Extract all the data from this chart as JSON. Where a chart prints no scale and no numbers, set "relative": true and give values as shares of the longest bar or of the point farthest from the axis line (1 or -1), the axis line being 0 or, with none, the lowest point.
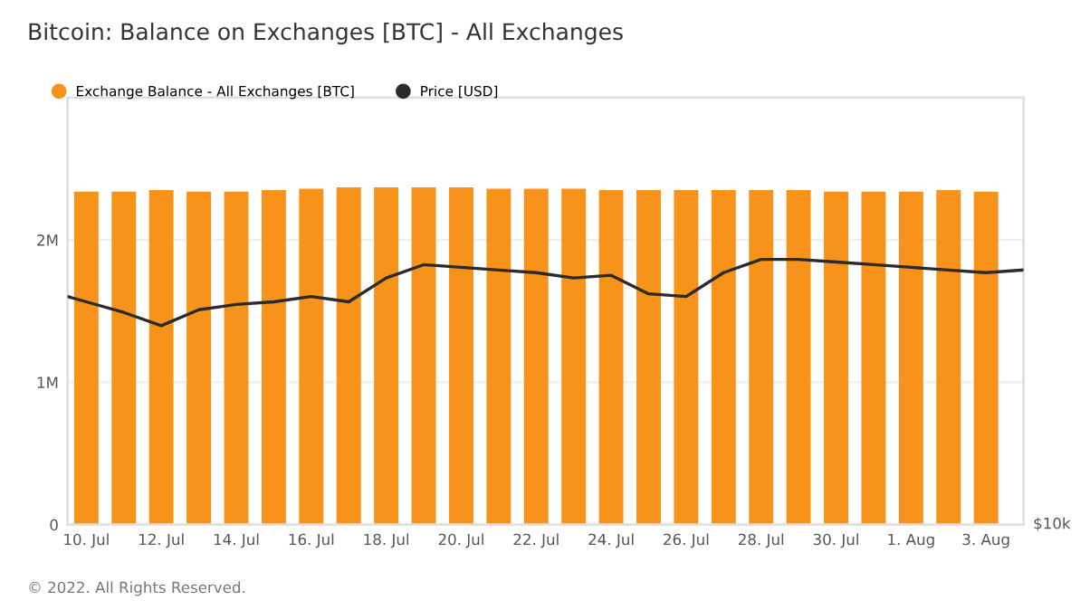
{
  "chart_data": [
    {
      "type": "bar",
      "title": "Bitcoin: Balance on Exchanges [BTC] - All Exchanges",
      "x": [
        "2022-07-10",
        "2022-07-11",
        "2022-07-12",
        "2022-07-13",
        "2022-07-14",
        "2022-07-15",
        "2022-07-16",
        "2022-07-17",
        "2022-07-18",
        "2022-07-19",
        "2022-07-20",
        "2022-07-21",
        "2022-07-22",
        "2022-07-23",
        "2022-07-24",
        "2022-07-25",
        "2022-07-26",
        "2022-07-27",
        "2022-07-28",
        "2022-07-29",
        "2022-07-30",
        "2022-07-31",
        "2022-08-01",
        "2022-08-02",
        "2022-08-03"
      ],
      "series": [
        {
          "name": "Exchange Balance - All Exchanges [BTC]",
          "color": "#f7931a",
          "values": [
            2340000,
            2340000,
            2350000,
            2340000,
            2340000,
            2350000,
            2360000,
            2370000,
            2370000,
            2370000,
            2370000,
            2360000,
            2360000,
            2360000,
            2350000,
            2350000,
            2350000,
            2350000,
            2350000,
            2350000,
            2340000,
            2340000,
            2340000,
            2350000,
            2340000
          ]
        }
      ],
      "xlim": [
        "2022-07-09T12:00",
        "2022-08-04"
      ],
      "xticks": [
        {
          "value": "2022-07-10",
          "label": "10. Jul"
        },
        {
          "value": "2022-07-12",
          "label": "12. Jul"
        },
        {
          "value": "2022-07-14",
          "label": "14. Jul"
        },
        {
          "value": "2022-07-16",
          "label": "16. Jul"
        },
        {
          "value": "2022-07-18",
          "label": "18. Jul"
        },
        {
          "value": "2022-07-20",
          "label": "20. Jul"
        },
        {
          "value": "2022-07-22",
          "label": "22. Jul"
        },
        {
          "value": "2022-07-24",
          "label": "24. Jul"
        },
        {
          "value": "2022-07-26",
          "label": "26. Jul"
        },
        {
          "value": "2022-07-28",
          "label": "28. Jul"
        },
        {
          "value": "2022-07-30",
          "label": "30. Jul"
        },
        {
          "value": "2022-08-01",
          "label": "1. Aug"
        },
        {
          "value": "2022-08-03",
          "label": "3. Aug"
        }
      ],
      "ylim": [
        0,
        3000000
      ],
      "yticks": [
        0,
        {
          "value": 1000000,
          "label": "1M"
        },
        {
          "value": 2000000,
          "label": "2M"
        }
      ],
      "grid": "y",
      "legend": "top left",
      "annotations": [
        "© 2022. All Rights Reserved."
      ]
    },
    {
      "type": "line",
      "relative": true,
      "x": [
        "2022-07-09T12:00",
        "2022-07-10",
        "2022-07-11",
        "2022-07-12",
        "2022-07-13",
        "2022-07-14",
        "2022-07-15",
        "2022-07-16",
        "2022-07-17",
        "2022-07-18",
        "2022-07-19",
        "2022-07-20",
        "2022-07-21",
        "2022-07-22",
        "2022-07-23",
        "2022-07-24",
        "2022-07-25",
        "2022-07-26",
        "2022-07-27",
        "2022-07-28",
        "2022-07-29",
        "2022-07-30",
        "2022-07-31",
        "2022-08-01",
        "2022-08-02",
        "2022-08-03",
        "2022-08-04"
      ],
      "series": [
        {
          "name": "Price [USD]",
          "color": "#2b2b2b",
          "values": [
            0.86,
            0.84,
            0.8,
            0.75,
            0.81,
            0.83,
            0.84,
            0.86,
            0.84,
            0.93,
            0.98,
            0.97,
            0.96,
            0.95,
            0.93,
            0.94,
            0.87,
            0.86,
            0.95,
            1,
            1,
            0.99,
            0.98,
            0.97,
            0.96,
            0.95,
            0.96
          ]
        }
      ],
      "xlim": [
        "2022-07-09T12:00",
        "2022-08-04"
      ],
      "legend": "top left",
      "annotations": [
        "$10k"
      ]
    }
  ]
}
